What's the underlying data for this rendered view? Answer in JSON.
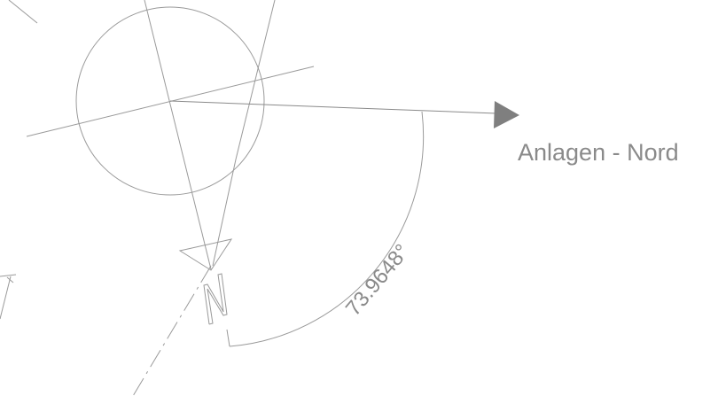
{
  "diagram": {
    "direction_label": "Anlagen - Nord",
    "angle_label": "73.9648°",
    "north_letter": "N",
    "colors": {
      "line": "#9a9a9a",
      "arrowhead": "#7f7f7f",
      "text": "#8a8a8a",
      "background": "#ffffff"
    }
  }
}
